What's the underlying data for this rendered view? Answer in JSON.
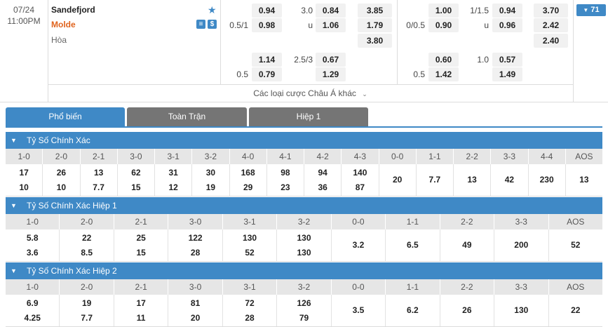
{
  "match": {
    "date": "07/24",
    "time": "11:00PM",
    "home": "Sandefjord",
    "away": "Molde",
    "draw": "Hòa",
    "icons": [
      "star-icon",
      "stats-icon",
      "dollar-icon"
    ]
  },
  "ft": {
    "handicap_main": {
      "line_home": "",
      "line_away": "0.5/1",
      "home": "0.94",
      "away": "0.98"
    },
    "ou_main": {
      "line": "3.0",
      "u_label": "u",
      "over": "0.84",
      "under": "1.06"
    },
    "x12_main": {
      "home": "3.85",
      "away": "1.79",
      "draw": "3.80"
    },
    "handicap_alt": {
      "line_away": "0.5",
      "home": "1.14",
      "away": "0.79"
    },
    "ou_alt": {
      "line": "2.5/3",
      "over": "0.67",
      "under": "1.29"
    }
  },
  "h1": {
    "handicap_main": {
      "line_away": "0/0.5",
      "home": "1.00",
      "away": "0.90"
    },
    "ou_main": {
      "line": "1/1.5",
      "u_label": "u",
      "over": "0.94",
      "under": "0.96"
    },
    "x12_main": {
      "home": "3.70",
      "away": "2.42",
      "draw": "2.40"
    },
    "handicap_alt": {
      "line_away": "0.5",
      "home": "0.60",
      "away": "1.42"
    },
    "ou_alt": {
      "line": "1.0",
      "over": "0.57",
      "under": "1.49"
    }
  },
  "more": {
    "label": "Các loại cược Châu Á khác",
    "badge": "71"
  },
  "tabs": [
    "Phổ biến",
    "Toàn Trận",
    "Hiệp 1"
  ],
  "sections": [
    {
      "title": "Tỷ Số Chính Xác",
      "columns": [
        "1-0",
        "2-0",
        "2-1",
        "3-0",
        "3-1",
        "3-2",
        "4-0",
        "4-1",
        "4-2",
        "4-3",
        "0-0",
        "1-1",
        "2-2",
        "3-3",
        "4-4",
        "AOS"
      ],
      "rows": [
        [
          "17",
          "26",
          "13",
          "62",
          "31",
          "30",
          "168",
          "98",
          "94",
          "140",
          "20",
          "7.7",
          "13",
          "42",
          "230",
          "13"
        ],
        [
          "10",
          "10",
          "7.7",
          "15",
          "12",
          "19",
          "29",
          "23",
          "36",
          "87",
          "",
          "",
          "",
          "",
          "",
          ""
        ]
      ]
    },
    {
      "title": "Tỷ Số Chính Xác Hiệp 1",
      "columns": [
        "1-0",
        "2-0",
        "2-1",
        "3-0",
        "3-1",
        "3-2",
        "0-0",
        "1-1",
        "2-2",
        "3-3",
        "AOS"
      ],
      "rows": [
        [
          "5.8",
          "22",
          "25",
          "122",
          "130",
          "130",
          "3.2",
          "6.5",
          "49",
          "200",
          "52"
        ],
        [
          "3.6",
          "8.5",
          "15",
          "28",
          "52",
          "130",
          "",
          "",
          "",
          "",
          ""
        ]
      ]
    },
    {
      "title": "Tỷ Số Chính Xác Hiệp 2",
      "columns": [
        "1-0",
        "2-0",
        "2-1",
        "3-0",
        "3-1",
        "3-2",
        "0-0",
        "1-1",
        "2-2",
        "3-3",
        "AOS"
      ],
      "rows": [
        [
          "6.9",
          "19",
          "17",
          "81",
          "72",
          "126",
          "3.5",
          "6.2",
          "26",
          "130",
          "22"
        ],
        [
          "4.25",
          "7.7",
          "11",
          "20",
          "28",
          "79",
          "",
          "",
          "",
          "",
          ""
        ]
      ]
    }
  ],
  "colors": {
    "accent": "#3f89c6",
    "away_team": "#e0641e",
    "tab_inactive": "#757575",
    "odd_bg": "#f1f1f1"
  }
}
